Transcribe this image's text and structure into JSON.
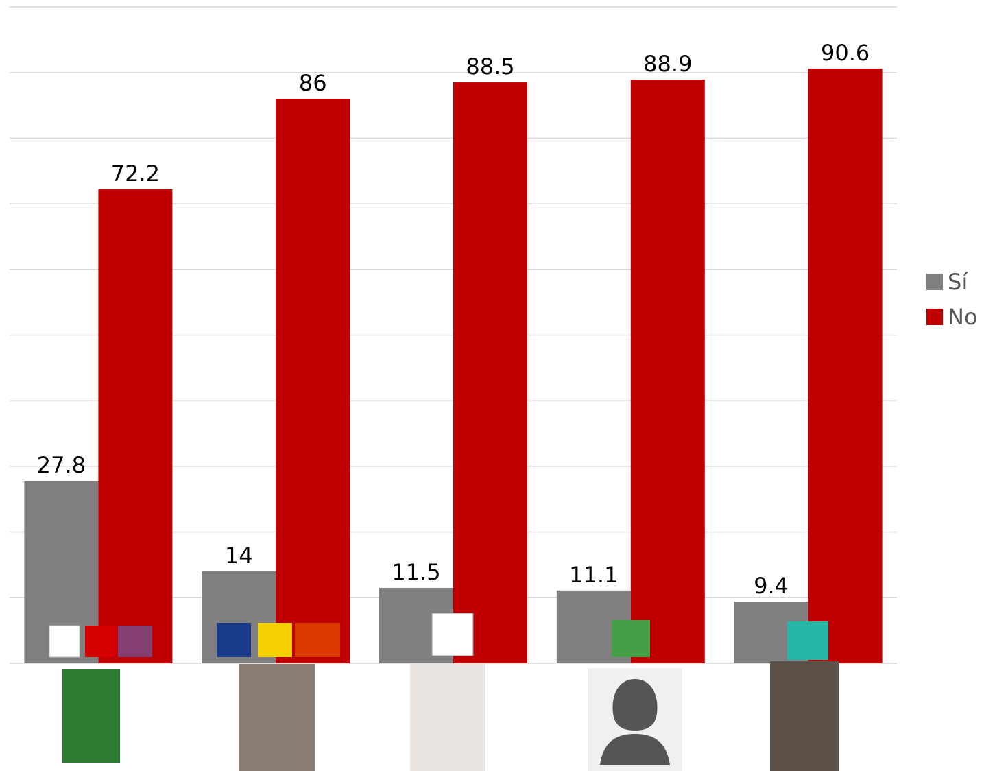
{
  "chart_data": {
    "type": "bar",
    "categories": [
      null,
      null,
      null,
      null,
      null
    ],
    "series": [
      {
        "name": "Sí",
        "color": "#808080",
        "values": [
          27.8,
          14,
          11.5,
          11.1,
          9.4
        ]
      },
      {
        "name": "No",
        "color": "#c00000",
        "values": [
          72.2,
          86,
          88.5,
          88.9,
          90.6
        ]
      }
    ],
    "ylim": [
      0,
      100
    ],
    "yticks": [
      0,
      10,
      20,
      30,
      40,
      50,
      60,
      70,
      80,
      90,
      100
    ],
    "grid": true,
    "legend": "right"
  }
}
